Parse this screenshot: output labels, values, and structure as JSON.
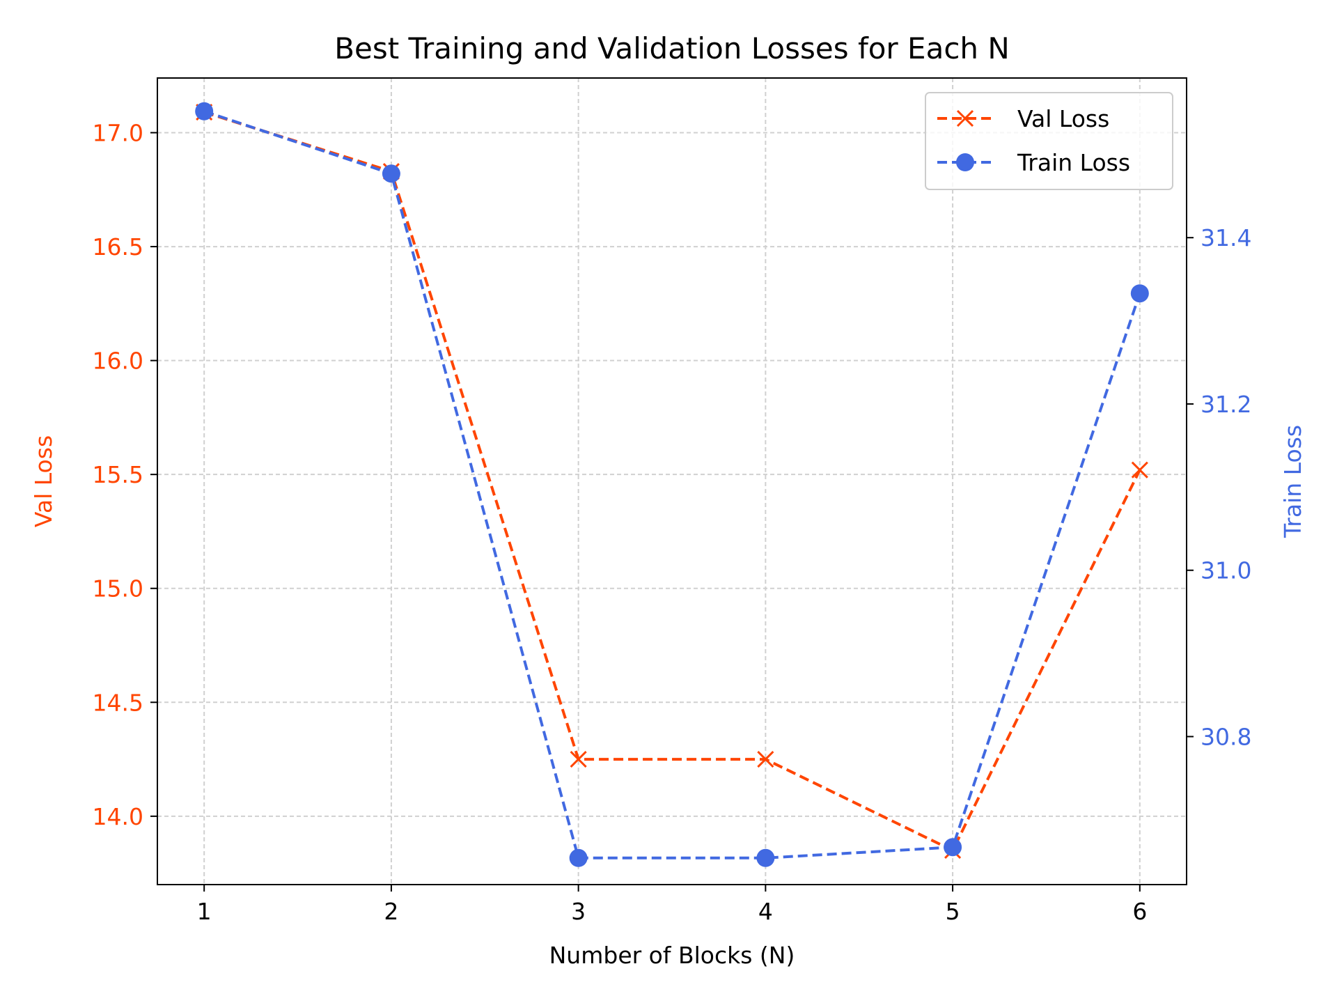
{
  "chart_data": {
    "type": "line",
    "title": "Best Training and Validation Losses for Each N",
    "xlabel": "Number of Blocks (N)",
    "ylabel_left": "Val Loss",
    "ylabel_right": "Train Loss",
    "x": [
      1,
      2,
      3,
      4,
      5,
      6
    ],
    "xticks": [
      "1",
      "2",
      "3",
      "4",
      "5",
      "6"
    ],
    "xlim": [
      0.75,
      6.25
    ],
    "y_left": {
      "lim": [
        13.7,
        17.24
      ],
      "ticks": [
        14.0,
        14.5,
        15.0,
        15.5,
        16.0,
        16.5,
        17.0
      ],
      "tick_labels": [
        "14.0",
        "14.5",
        "15.0",
        "15.5",
        "16.0",
        "16.5",
        "17.0"
      ],
      "color": "#ff4500"
    },
    "y_right": {
      "lim": [
        30.622,
        31.592
      ],
      "ticks": [
        30.8,
        31.0,
        31.2,
        31.4
      ],
      "tick_labels": [
        "30.8",
        "31.0",
        "31.2",
        "31.4"
      ],
      "color": "#4169e1"
    },
    "grid": true,
    "legend_position": "top-right",
    "series": [
      {
        "name": "Val Loss",
        "axis": "left",
        "marker": "x",
        "linestyle": "dashed",
        "color": "#ff4500",
        "values": [
          17.09,
          16.83,
          14.25,
          14.25,
          13.85,
          15.52
        ]
      },
      {
        "name": "Train Loss",
        "axis": "right",
        "marker": "o",
        "linestyle": "dashed",
        "color": "#4169e1",
        "values": [
          31.552,
          31.477,
          30.654,
          30.654,
          30.667,
          31.333
        ]
      }
    ]
  }
}
